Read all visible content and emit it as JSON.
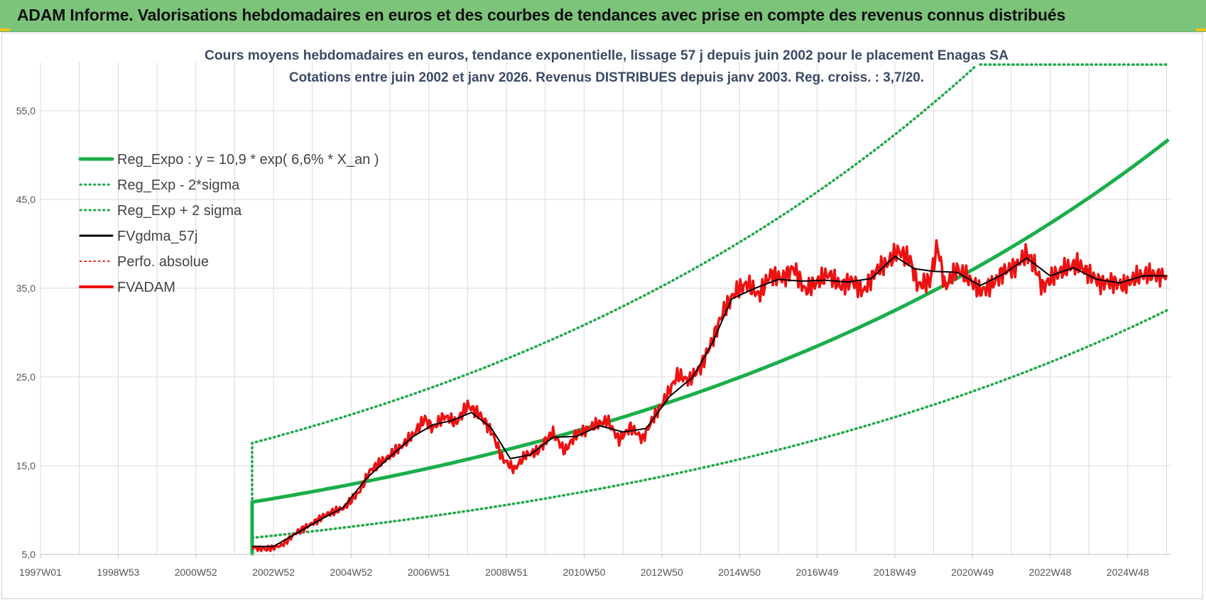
{
  "header": {
    "title": "ADAM Informe. Valorisations hebdomadaires en euros et des courbes de tendances avec prise en compte des revenus connus distribués"
  },
  "colors": {
    "header_bg": "#7cc47a",
    "reg_green": "#1aae4a",
    "sigma_green": "#21a84a",
    "fv_black": "#000000",
    "fvadam_red": "#ee1111",
    "perfo_red": "#ee1111",
    "grid": "#d9d9d9"
  },
  "chart_data": {
    "type": "line",
    "title_line1": "Cours moyens hebdomadaires en euros, tendance exponentielle, lissage 57 j depuis juin 2002 pour le placement Enagas SA",
    "title_line2": "Cotations entre juin 2002 et janv 2026. Revenus DISTRIBUES depuis janv 2003. Reg. croiss. : 3,7/20.",
    "x_tick_labels": [
      "1997W01",
      "1998W53",
      "2000W52",
      "2002W52",
      "2004W52",
      "2006W51",
      "2008W51",
      "2010W50",
      "2012W50",
      "2014W50",
      "2016W49",
      "2018W49",
      "2020W49",
      "2022W48",
      "2024W48"
    ],
    "x_tick_years": [
      1997.0,
      1999.0,
      2001.0,
      2003.0,
      2005.0,
      2007.0,
      2009.0,
      2011.0,
      2013.0,
      2015.0,
      2017.0,
      2019.0,
      2021.0,
      2023.0,
      2025.0
    ],
    "xlim": [
      1997.0,
      2026.1
    ],
    "y_tick_labels": [
      "5,0",
      "15,0",
      "25,0",
      "35,0",
      "45,0",
      "55,0"
    ],
    "y_ticks": [
      5,
      15,
      25,
      35,
      45,
      55
    ],
    "ylim": [
      5,
      60
    ],
    "legend": [
      {
        "label": "Reg_Expo : y = 10,9 * exp( 6,6% *  X_an )",
        "color": "#1aae4a",
        "style": "solid",
        "width": 5
      },
      {
        "label": "Reg_Exp - 2*sigma",
        "color": "#21a84a",
        "style": "dotted",
        "width": 3
      },
      {
        "label": "Reg_Exp + 2 sigma",
        "color": "#21a84a",
        "style": "dotted",
        "width": 3
      },
      {
        "label": "FVgdma_57j",
        "color": "#000000",
        "style": "solid",
        "width": 3
      },
      {
        "label": "Perfo. absolue",
        "color": "#ee1111",
        "style": "dotted",
        "width": 2
      },
      {
        "label": "FVADAM",
        "color": "#ee1111",
        "style": "solid",
        "width": 4
      }
    ],
    "regression": {
      "start_year": 2002.45,
      "end_year": 2026.1,
      "a": 10.9,
      "rate": 0.066,
      "sigma_lower_factor": 0.63,
      "sigma_upper_factor": 1.61,
      "upper_cap": 60
    },
    "series": [
      {
        "name": "FVADAM",
        "points": [
          [
            2002.45,
            5.8
          ],
          [
            2002.8,
            5.6
          ],
          [
            2003.2,
            6.0
          ],
          [
            2003.6,
            7.5
          ],
          [
            2004.0,
            8.5
          ],
          [
            2004.4,
            9.6
          ],
          [
            2004.8,
            10.2
          ],
          [
            2005.2,
            12.0
          ],
          [
            2005.5,
            14.5
          ],
          [
            2005.9,
            15.8
          ],
          [
            2006.3,
            17.2
          ],
          [
            2006.6,
            18.5
          ],
          [
            2006.9,
            20.3
          ],
          [
            2007.1,
            19.2
          ],
          [
            2007.4,
            20.6
          ],
          [
            2007.7,
            19.8
          ],
          [
            2008.0,
            21.8
          ],
          [
            2008.3,
            20.8
          ],
          [
            2008.6,
            19.0
          ],
          [
            2008.9,
            15.8
          ],
          [
            2009.2,
            14.6
          ],
          [
            2009.5,
            16.2
          ],
          [
            2009.8,
            16.6
          ],
          [
            2010.0,
            17.8
          ],
          [
            2010.2,
            18.7
          ],
          [
            2010.5,
            16.6
          ],
          [
            2010.8,
            18.6
          ],
          [
            2011.0,
            18.9
          ],
          [
            2011.3,
            19.6
          ],
          [
            2011.6,
            20.1
          ],
          [
            2011.9,
            17.9
          ],
          [
            2012.2,
            19.4
          ],
          [
            2012.5,
            18.0
          ],
          [
            2012.8,
            20.5
          ],
          [
            2013.1,
            22.6
          ],
          [
            2013.4,
            25.2
          ],
          [
            2013.7,
            24.6
          ],
          [
            2014.0,
            26.1
          ],
          [
            2014.3,
            29.1
          ],
          [
            2014.6,
            32.6
          ],
          [
            2014.9,
            34.6
          ],
          [
            2015.2,
            35.5
          ],
          [
            2015.5,
            34.2
          ],
          [
            2015.8,
            36.6
          ],
          [
            2016.1,
            36.1
          ],
          [
            2016.4,
            37.3
          ],
          [
            2016.7,
            34.7
          ],
          [
            2017.0,
            35.7
          ],
          [
            2017.3,
            36.6
          ],
          [
            2017.6,
            35.2
          ],
          [
            2017.9,
            35.9
          ],
          [
            2018.2,
            34.6
          ],
          [
            2018.5,
            36.9
          ],
          [
            2018.8,
            37.8
          ],
          [
            2019.1,
            39.2
          ],
          [
            2019.4,
            38.1
          ],
          [
            2019.6,
            35.3
          ],
          [
            2019.9,
            35.8
          ],
          [
            2020.1,
            39.8
          ],
          [
            2020.3,
            35.1
          ],
          [
            2020.6,
            37.2
          ],
          [
            2020.9,
            36.1
          ],
          [
            2021.2,
            34.6
          ],
          [
            2021.5,
            35.4
          ],
          [
            2021.8,
            36.9
          ],
          [
            2022.1,
            37.4
          ],
          [
            2022.4,
            38.9
          ],
          [
            2022.6,
            37.6
          ],
          [
            2022.8,
            35.1
          ],
          [
            2023.1,
            36.4
          ],
          [
            2023.4,
            37.2
          ],
          [
            2023.7,
            37.7
          ],
          [
            2024.0,
            36.7
          ],
          [
            2024.3,
            35.6
          ],
          [
            2024.6,
            35.7
          ],
          [
            2024.9,
            35.3
          ],
          [
            2025.2,
            36.2
          ],
          [
            2025.5,
            36.6
          ],
          [
            2025.8,
            36.4
          ],
          [
            2026.0,
            36.5
          ]
        ]
      },
      {
        "name": "FVgdma_57j",
        "points": [
          [
            2002.45,
            5.9
          ],
          [
            2003.0,
            5.9
          ],
          [
            2003.6,
            7.4
          ],
          [
            2004.2,
            8.9
          ],
          [
            2004.8,
            10.3
          ],
          [
            2005.4,
            13.6
          ],
          [
            2006.0,
            16.0
          ],
          [
            2006.6,
            18.3
          ],
          [
            2007.1,
            19.6
          ],
          [
            2007.6,
            20.1
          ],
          [
            2008.1,
            21.0
          ],
          [
            2008.6,
            19.3
          ],
          [
            2009.1,
            15.8
          ],
          [
            2009.6,
            16.2
          ],
          [
            2010.2,
            18.2
          ],
          [
            2010.8,
            18.3
          ],
          [
            2011.4,
            19.5
          ],
          [
            2012.0,
            18.8
          ],
          [
            2012.6,
            19.2
          ],
          [
            2013.2,
            22.8
          ],
          [
            2013.8,
            25.0
          ],
          [
            2014.3,
            28.8
          ],
          [
            2014.8,
            33.8
          ],
          [
            2015.4,
            35.0
          ],
          [
            2016.0,
            36.0
          ],
          [
            2016.6,
            35.8
          ],
          [
            2017.2,
            35.9
          ],
          [
            2017.8,
            35.7
          ],
          [
            2018.4,
            36.1
          ],
          [
            2019.0,
            38.6
          ],
          [
            2019.5,
            37.2
          ],
          [
            2020.0,
            36.9
          ],
          [
            2020.6,
            36.8
          ],
          [
            2021.2,
            35.3
          ],
          [
            2021.8,
            36.6
          ],
          [
            2022.4,
            38.4
          ],
          [
            2023.0,
            36.4
          ],
          [
            2023.6,
            37.3
          ],
          [
            2024.2,
            36.0
          ],
          [
            2024.8,
            35.6
          ],
          [
            2025.4,
            36.4
          ],
          [
            2026.0,
            36.4
          ]
        ]
      }
    ]
  }
}
